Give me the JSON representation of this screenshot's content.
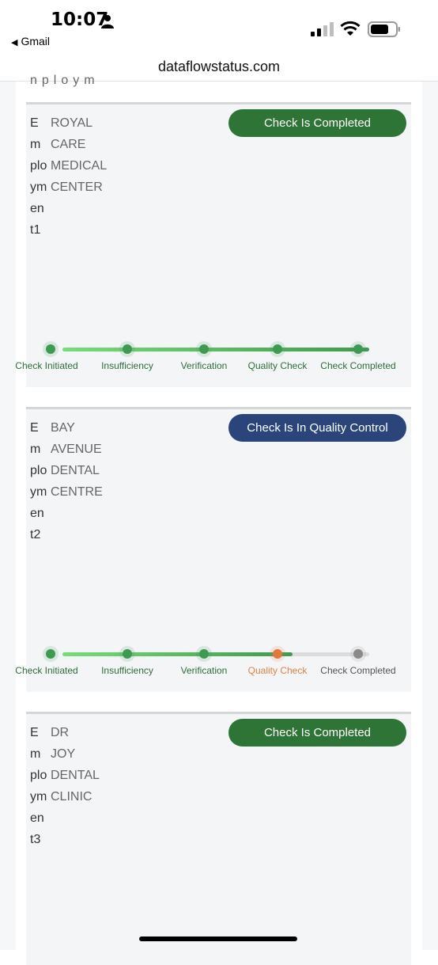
{
  "status_bar": {
    "time": "10:07",
    "back_app": "Gmail"
  },
  "browser": {
    "url": "dataflowstatus.com"
  },
  "cut_off_text": "nploym",
  "cards": [
    {
      "employment_label": "Employment1",
      "company": "ROYAL CARE MEDICAL CENTER",
      "status": "Check Is Completed",
      "status_color": "#2e7437",
      "progress_percent": 100,
      "steps": [
        {
          "label": "Check Initiated",
          "state": "done"
        },
        {
          "label": "Insufficiency",
          "state": "done"
        },
        {
          "label": "Verification",
          "state": "done"
        },
        {
          "label": "Quality Check",
          "state": "done"
        },
        {
          "label": "Check Completed",
          "state": "done"
        }
      ]
    },
    {
      "employment_label": "Employment2",
      "company": "BAY AVENUE DENTAL CENTRE",
      "status": "Check Is In Quality Control",
      "status_color": "#2b457a",
      "progress_percent": 75,
      "steps": [
        {
          "label": "Check Initiated",
          "state": "done"
        },
        {
          "label": "Insufficiency",
          "state": "done"
        },
        {
          "label": "Verification",
          "state": "done"
        },
        {
          "label": "Quality Check",
          "state": "current"
        },
        {
          "label": "Check Completed",
          "state": "pending"
        }
      ]
    },
    {
      "employment_label": "Employment3",
      "company": "DR JOY DENTAL CLINIC",
      "status": "Check Is Completed",
      "status_color": "#2e7437"
    }
  ],
  "colors": {
    "done": "#3e9a52",
    "current": "#e07840",
    "pending": "#8a8a8a"
  }
}
